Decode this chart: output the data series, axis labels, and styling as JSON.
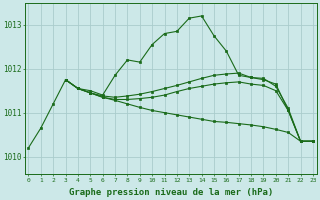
{
  "bg_color": "#cce8e8",
  "grid_color": "#aacccc",
  "line_color": "#1a6b1a",
  "marker_color": "#1a6b1a",
  "xlabel": "Graphe pression niveau de la mer (hPa)",
  "xlabel_fontsize": 6.5,
  "xticks": [
    0,
    1,
    2,
    3,
    4,
    5,
    6,
    7,
    8,
    9,
    10,
    11,
    12,
    13,
    14,
    15,
    16,
    17,
    18,
    19,
    20,
    21,
    22,
    23
  ],
  "yticks": [
    1010,
    1011,
    1012,
    1013
  ],
  "ylim": [
    1009.6,
    1013.5
  ],
  "xlim": [
    -0.3,
    23.3
  ],
  "line1": [
    1010.2,
    1010.65,
    1011.2,
    1011.75,
    1011.55,
    1011.5,
    1011.4,
    1011.85,
    1012.2,
    1012.15,
    1012.55,
    1012.8,
    1012.85,
    1013.15,
    1013.2,
    1012.75,
    1012.4,
    1011.85,
    1011.8,
    1011.75,
    1011.65,
    1011.05,
    1010.35,
    1010.35
  ],
  "line2": [
    null,
    null,
    null,
    1011.75,
    1011.55,
    1011.45,
    1011.38,
    1011.35,
    1011.38,
    1011.42,
    1011.48,
    1011.55,
    1011.62,
    1011.7,
    1011.78,
    1011.85,
    1011.88,
    1011.9,
    1011.8,
    1011.78,
    1011.6,
    1011.1,
    1010.35,
    1010.35
  ],
  "line3": [
    null,
    null,
    null,
    1011.75,
    1011.55,
    1011.45,
    1011.35,
    1011.3,
    1011.3,
    1011.32,
    1011.35,
    1011.4,
    1011.48,
    1011.55,
    1011.6,
    1011.65,
    1011.68,
    1011.7,
    1011.65,
    1011.62,
    1011.5,
    1011.05,
    1010.35,
    1010.35
  ],
  "line4": [
    null,
    null,
    null,
    1011.75,
    1011.55,
    1011.45,
    1011.35,
    1011.28,
    1011.2,
    1011.12,
    1011.05,
    1011.0,
    1010.95,
    1010.9,
    1010.85,
    1010.8,
    1010.78,
    1010.75,
    1010.72,
    1010.68,
    1010.62,
    1010.55,
    1010.35,
    1010.35
  ]
}
